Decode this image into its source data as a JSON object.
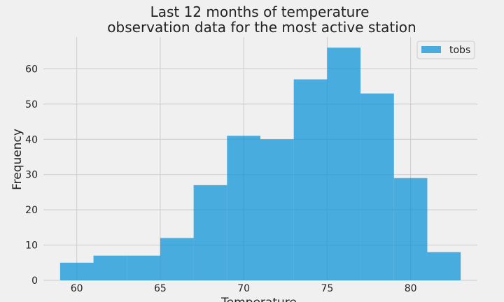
{
  "chart_data": {
    "type": "bar",
    "title_lines": [
      "Last 12 months of temperature",
      "observation data for the most active station"
    ],
    "xlabel": "Temperature",
    "ylabel": "Frequency",
    "bin_edges": [
      59,
      61,
      63,
      65,
      67,
      69,
      71,
      73,
      75,
      77,
      79,
      81,
      83
    ],
    "series": [
      {
        "name": "tobs",
        "values": [
          5,
          7,
          7,
          12,
          27,
          41,
          40,
          57,
          66,
          53,
          29,
          8
        ],
        "color": "#008fd5"
      }
    ],
    "xlim": [
      58,
      84
    ],
    "ylim": [
      0,
      69
    ],
    "xticks": [
      60,
      65,
      70,
      75,
      80
    ],
    "yticks": [
      0,
      10,
      20,
      30,
      40,
      50,
      60
    ],
    "grid": true,
    "legend_position": "top-right",
    "background": "#f0f0f0",
    "grid_color": "#cbcbcb"
  }
}
